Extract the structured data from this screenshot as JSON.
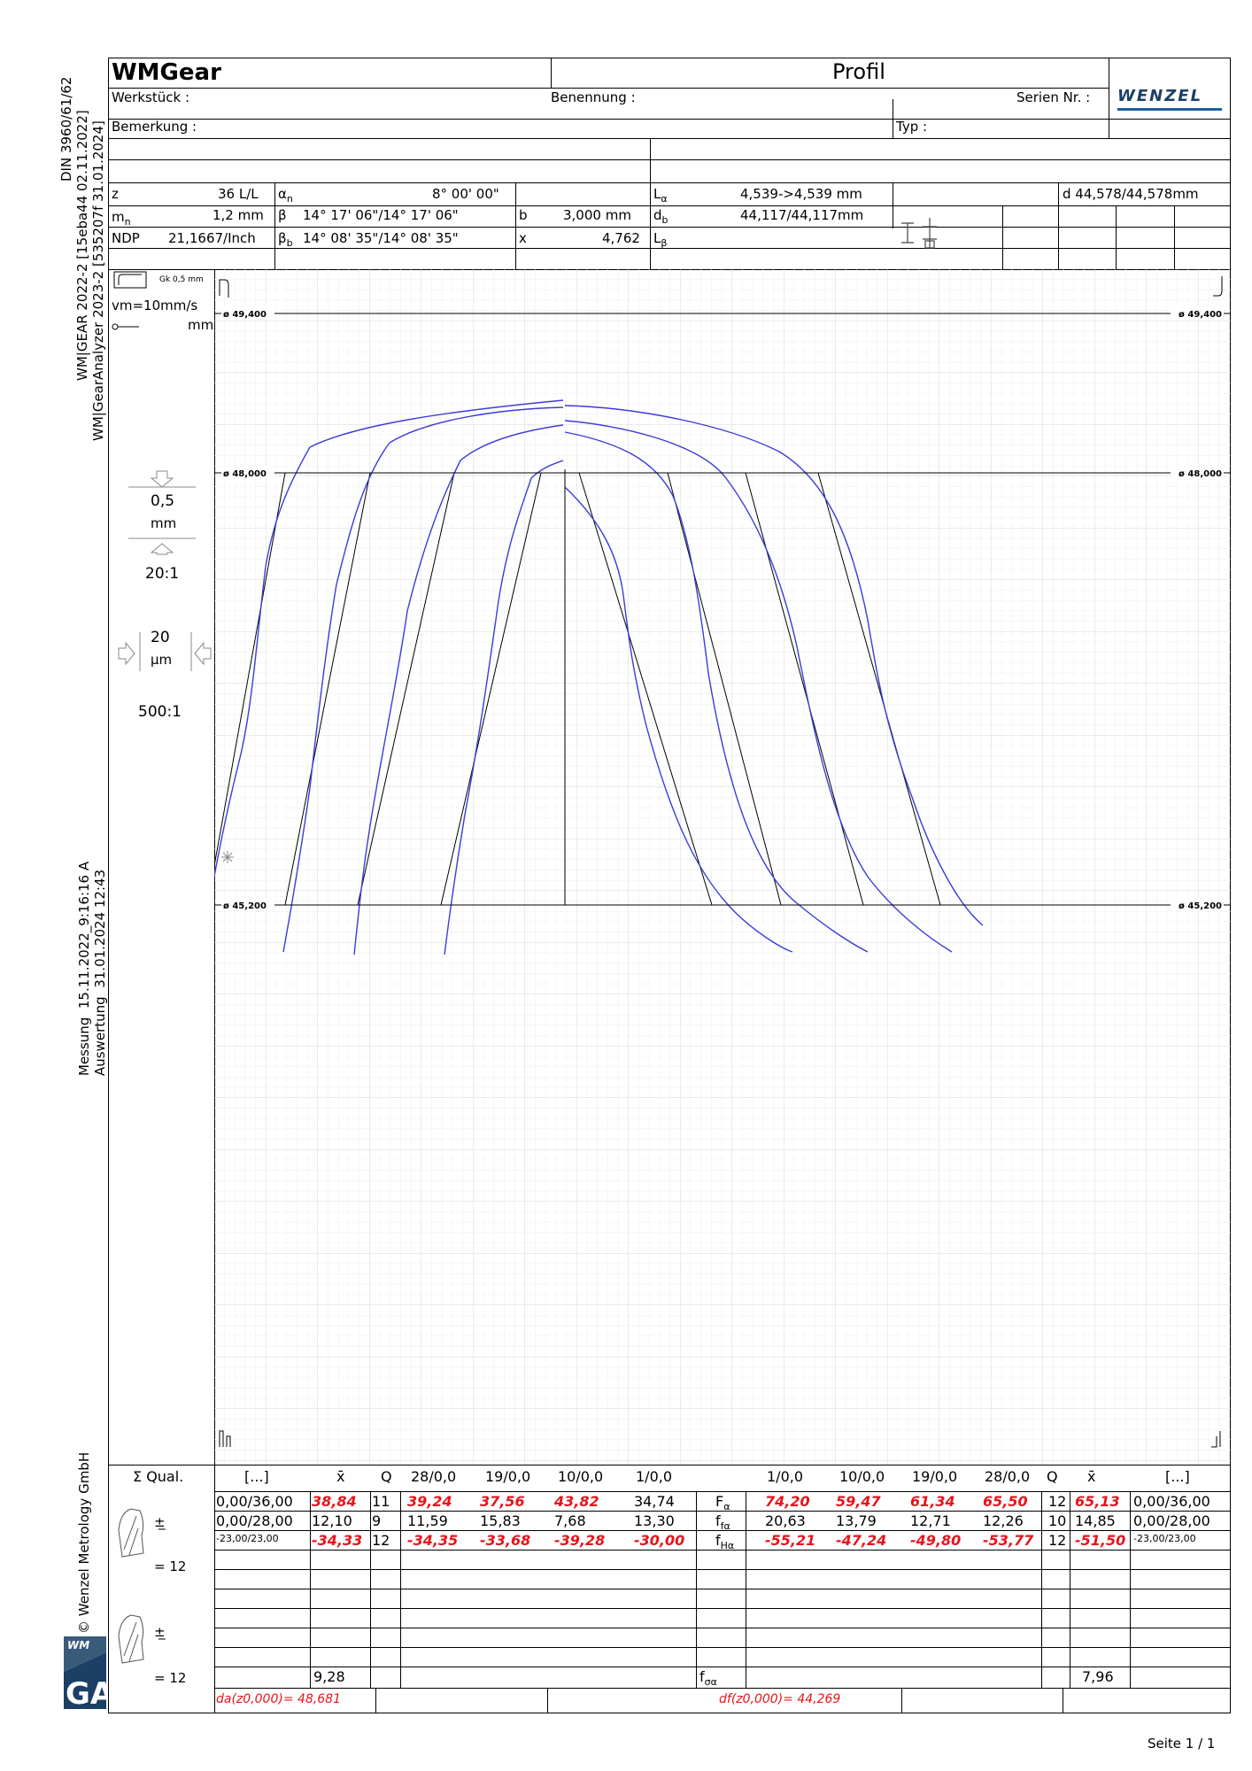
{
  "side": {
    "norm": "DIN 3960/61/62",
    "ver1": "WM|GEAR 2022-2  [15eba44 02.11.2022]",
    "ver2": "WM|GearAnalyzer 2023-2  [535207f 31.01.2024]",
    "messung_label": "Messung",
    "messung_value": "15.11.2022_9:16:16 A",
    "auswertung_label": "Auswertung",
    "auswertung_value": "31.01.2024 12:43",
    "copyright": "© Wenzel Metrology GmbH",
    "logo_top": "WM",
    "logo_bottom": "GA"
  },
  "header": {
    "app": "WMGear",
    "title": "Profil",
    "brand": "WENZEL",
    "werkstueck": "Werkstück :",
    "benennung": "Benennung :",
    "serien": "Serien Nr. :",
    "bemerkung": "Bemerkung :",
    "typ": "Typ :"
  },
  "params": {
    "z_label": "z",
    "z_value": "36  L/L",
    "mn_label": "m",
    "mn_sub": "n",
    "mn_value": "1,2 mm",
    "ndp_label": "NDP",
    "ndp_value": "21,1667/Inch",
    "an_label": "α",
    "an_sub": "n",
    "an_value": "8° 00' 00\"",
    "beta_label": "β",
    "beta_value": "14° 17' 06\"/14° 17' 06\"",
    "betab_label": "β",
    "betab_sub": "b",
    "betab_value": "14° 08' 35\"/14° 08' 35\"",
    "b_label": "b",
    "b_value": "3,000 mm",
    "x_label": "x",
    "x_value": "4,762",
    "la_label": "L",
    "la_sub": "α",
    "la_value": "4,539->4,539 mm",
    "db_label": "d",
    "db_sub": "b",
    "db_value": "44,117/44,117mm",
    "lb_label": "L",
    "lb_sub": "β",
    "d_value": "d  44,578/44,578mm"
  },
  "legend": {
    "filter": "Gk 0,5 mm",
    "vm": "vm=10mm/s",
    "mm": "mm",
    "scale1": "0,5",
    "scale1_unit": "mm",
    "ratio1": "20:1",
    "scale2": "20",
    "scale2_unit": "µm",
    "ratio2": "500:1"
  },
  "diameters": {
    "d1": "ø 49,400",
    "d2": "ø 48,000",
    "d3": "ø 45,200"
  },
  "table": {
    "qual": "Σ Qual.",
    "headers_left": [
      "[...]",
      "x̄",
      "Q",
      "28/0,0",
      "19/0,0",
      "10/0,0",
      "1/0,0"
    ],
    "headers_right": [
      "1/0,0",
      "10/0,0",
      "19/0,0",
      "28/0,0",
      "Q",
      "x̄",
      "[...]"
    ],
    "rows": [
      {
        "label": "F",
        "sub": "α",
        "left": [
          "0,00/36,00",
          "38,84",
          "11",
          "39,24",
          "37,56",
          "43,82",
          "34,74"
        ],
        "right": [
          "74,20",
          "59,47",
          "61,34",
          "65,50",
          "12",
          "65,13",
          "0,00/36,00"
        ]
      },
      {
        "label": "f",
        "sub": "fα",
        "left": [
          "0,00/28,00",
          "12,10",
          "9",
          "11,59",
          "15,83",
          "7,68",
          "13,30"
        ],
        "right": [
          "20,63",
          "13,79",
          "12,71",
          "12,26",
          "10",
          "14,85",
          "0,00/28,00"
        ]
      },
      {
        "label": "f",
        "sub": "Hα",
        "left": [
          "-23,00/23,00",
          "-34,33",
          "12",
          "-34,35",
          "-33,68",
          "-39,28",
          "-30,00"
        ],
        "right": [
          "-55,21",
          "-47,24",
          "-49,80",
          "-53,77",
          "12",
          "-51,50",
          "-23,00/23,00"
        ]
      }
    ],
    "eq1": "=  12",
    "eq2": "=  12",
    "fsa_label": "f",
    "fsa_sub": "σα",
    "fsa_left": "9,28",
    "fsa_right": "7,96",
    "da": "da(z0,000)=  48,681",
    "df": "df(z0,000)=      44,269"
  },
  "footer": {
    "page": "Seite 1 / 1"
  }
}
